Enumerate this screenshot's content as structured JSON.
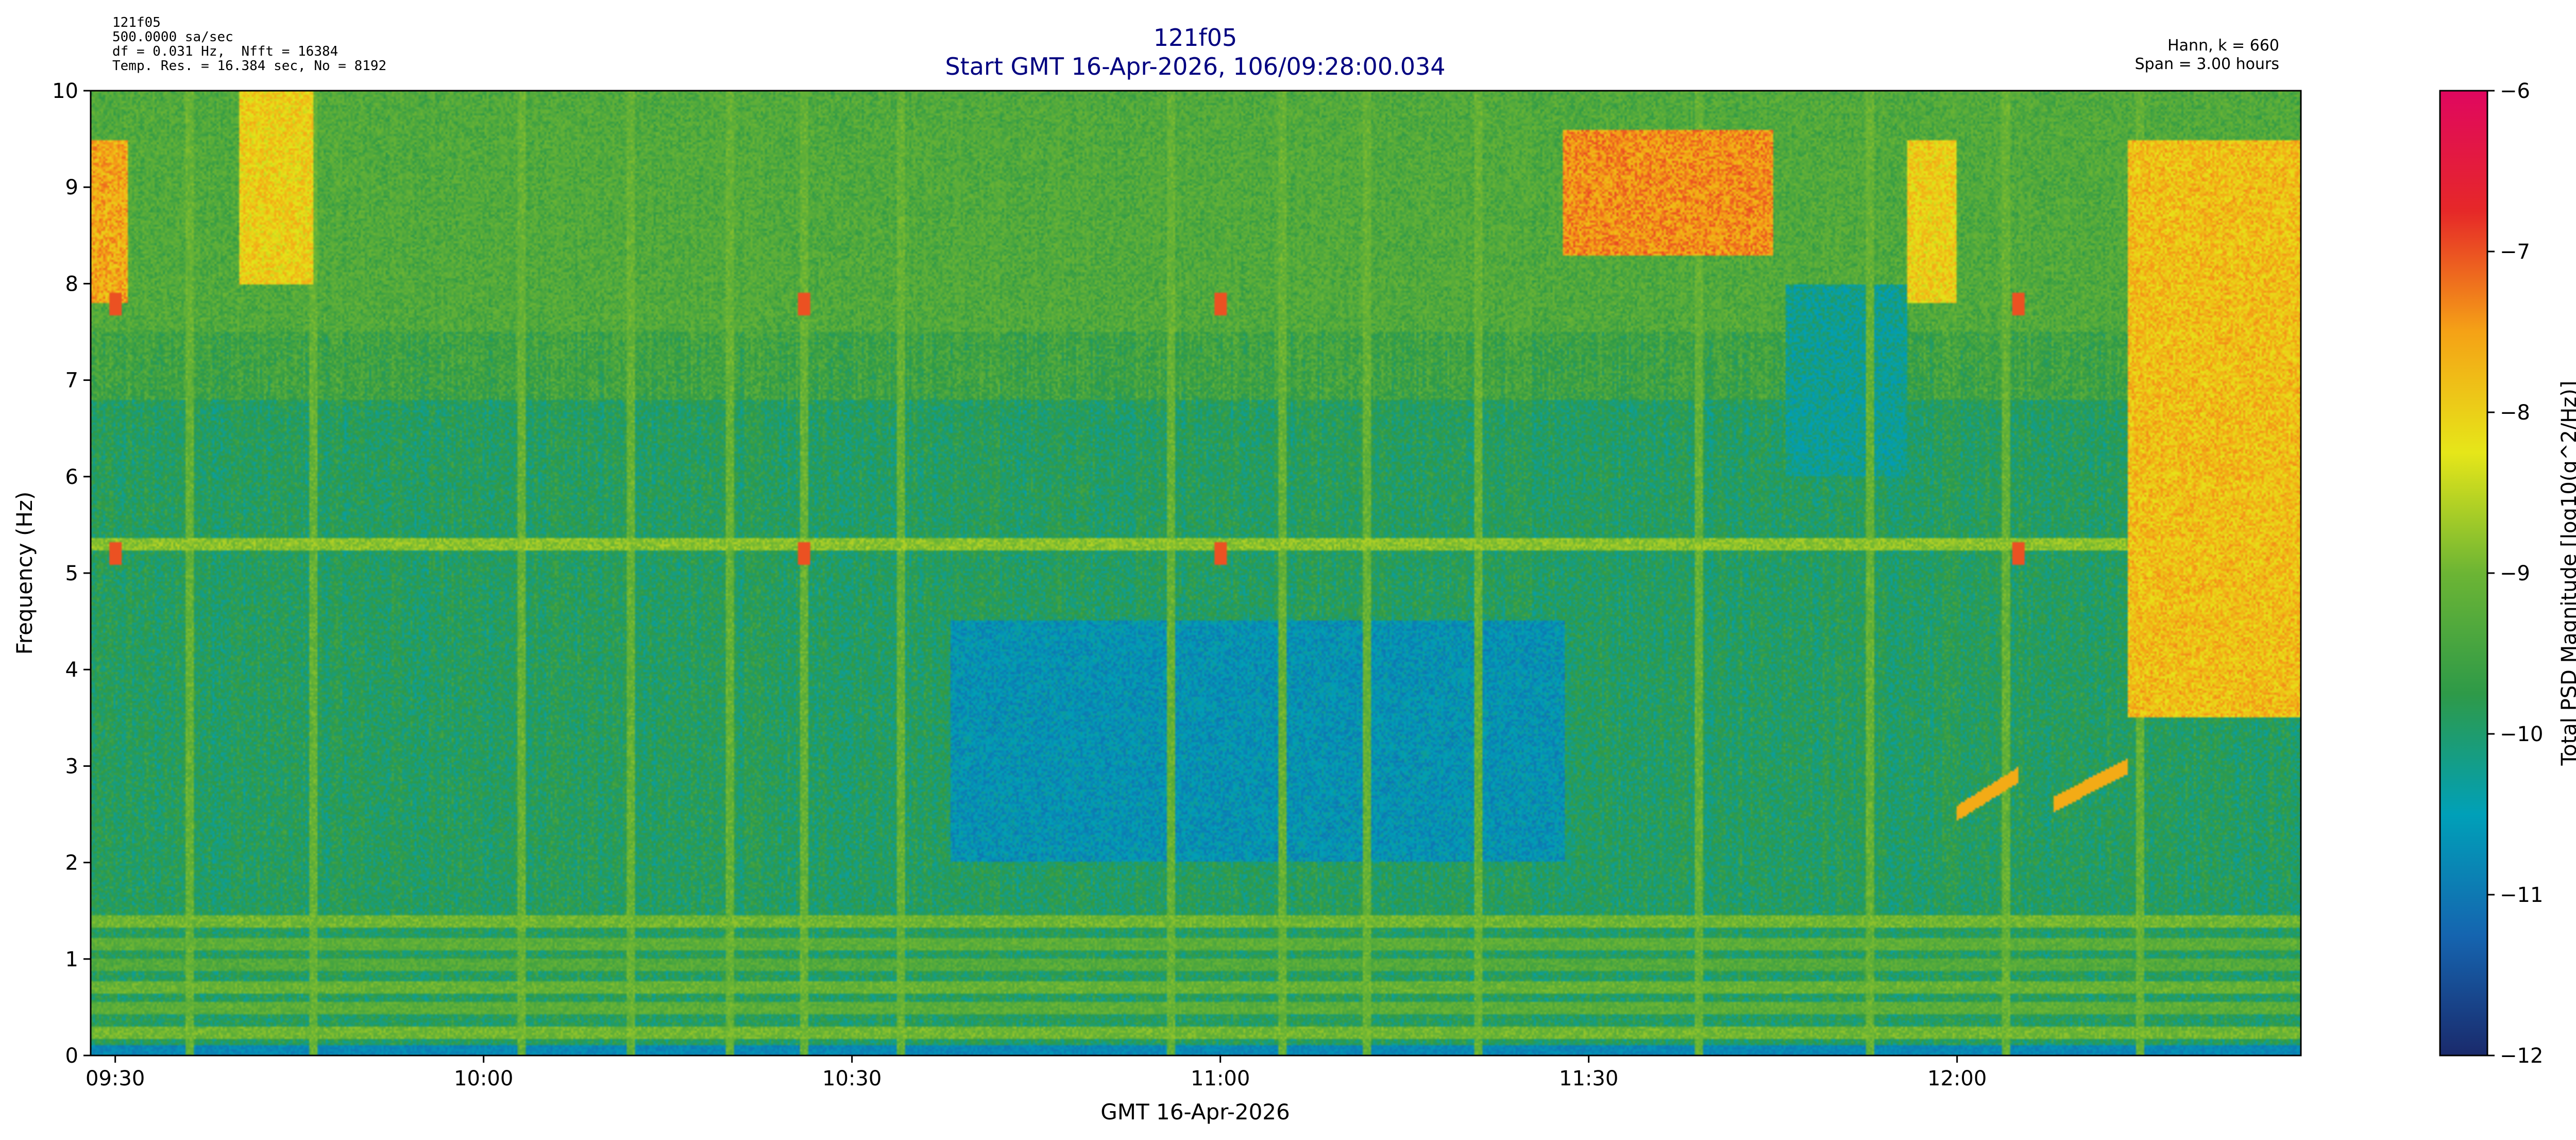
{
  "chart_data": {
    "type": "heatmap",
    "title": "121f05",
    "subtitle": "Start GMT 16-Apr-2026, 106/09:28:00.034",
    "title_color": "#000080",
    "info_lines": [
      "121f05",
      "500.0000 sa/sec",
      "df = 0.031 Hz,  Nfft = 16384",
      "Temp. Res. = 16.384 sec, No = 8192"
    ],
    "right_info_lines": [
      "Hann, k = 660",
      "Span = 3.00 hours"
    ],
    "xlabel": "GMT 16-Apr-2026",
    "ylabel": "Frequency (Hz)",
    "colorbar_label": "Total PSD Magnitude [log10(g^2/Hz)]",
    "x_range_minutes": [
      0,
      180
    ],
    "x_ticks": [
      {
        "label": "09:30",
        "minute": 2
      },
      {
        "label": "10:00",
        "minute": 32
      },
      {
        "label": "10:30",
        "minute": 62
      },
      {
        "label": "11:00",
        "minute": 92
      },
      {
        "label": "11:30",
        "minute": 122
      },
      {
        "label": "12:00",
        "minute": 152
      }
    ],
    "ylim": [
      0,
      10
    ],
    "y_ticks": [
      "0",
      "1",
      "2",
      "3",
      "4",
      "5",
      "6",
      "7",
      "8",
      "9",
      "10"
    ],
    "clim": [
      -12,
      -6
    ],
    "c_ticks": [
      "−12",
      "−11",
      "−10",
      "−9",
      "−8",
      "−7",
      "−6"
    ],
    "colormap": [
      "#1a2a6c",
      "#1565b0",
      "#00a0b8",
      "#2e9a48",
      "#6cb534",
      "#e6e619",
      "#f5a216",
      "#e62828",
      "#e0075f"
    ],
    "grid": false,
    "features": {
      "horizontal_lines_hz": [
        {
          "f": 0.22,
          "level": -9.0
        },
        {
          "f": 0.48,
          "level": -9.2
        },
        {
          "f": 0.7,
          "level": -9.1
        },
        {
          "f": 0.93,
          "level": -9.3
        },
        {
          "f": 1.15,
          "level": -9.2
        },
        {
          "f": 1.38,
          "level": -9.0
        },
        {
          "f": 5.3,
          "level": -8.8
        }
      ],
      "upper_band": {
        "hz_from": 7.5,
        "hz_to": 10,
        "level": -9.0
      },
      "hot_regions": [
        {
          "t_from": 0,
          "t_to": 3,
          "hz_from": 7.8,
          "hz_to": 9.5,
          "level": -7.6
        },
        {
          "t_from": 120,
          "t_to": 137,
          "hz_from": 8.3,
          "hz_to": 9.6,
          "level": -7.4
        },
        {
          "t_from": 166,
          "t_to": 180,
          "hz_from": 3.5,
          "hz_to": 9.5,
          "level": -7.8
        },
        {
          "t_from": 12,
          "t_to": 18,
          "hz_from": 8.0,
          "hz_to": 10,
          "level": -8.0
        },
        {
          "t_from": 148,
          "t_to": 152,
          "hz_from": 7.8,
          "hz_to": 9.5,
          "level": -8.0
        }
      ],
      "quiet_regions": [
        {
          "t_from": 70,
          "t_to": 120,
          "hz_from": 2.0,
          "hz_to": 4.5,
          "level": -10.8
        },
        {
          "t_from": 138,
          "t_to": 148,
          "hz_from": 6.0,
          "hz_to": 8.0,
          "level": -10.4
        }
      ],
      "vertical_streaks_min": [
        8,
        18,
        35,
        44,
        52,
        58,
        66,
        88,
        97,
        104,
        113,
        131,
        145,
        156,
        167
      ],
      "red_spots": [
        {
          "t": 2,
          "hz": 7.8
        },
        {
          "t": 2,
          "hz": 5.2
        },
        {
          "t": 58,
          "hz": 7.8
        },
        {
          "t": 58,
          "hz": 5.2
        },
        {
          "t": 92,
          "hz": 7.8
        },
        {
          "t": 92,
          "hz": 5.2
        },
        {
          "t": 157,
          "hz": 7.8
        },
        {
          "t": 157,
          "hz": 5.2
        }
      ],
      "rising_traces": [
        {
          "t_from": 152,
          "t_to": 157,
          "hz_from": 2.5,
          "hz_to": 2.9
        },
        {
          "t_from": 160,
          "t_to": 166,
          "hz_from": 2.6,
          "hz_to": 3.0
        }
      ]
    }
  }
}
